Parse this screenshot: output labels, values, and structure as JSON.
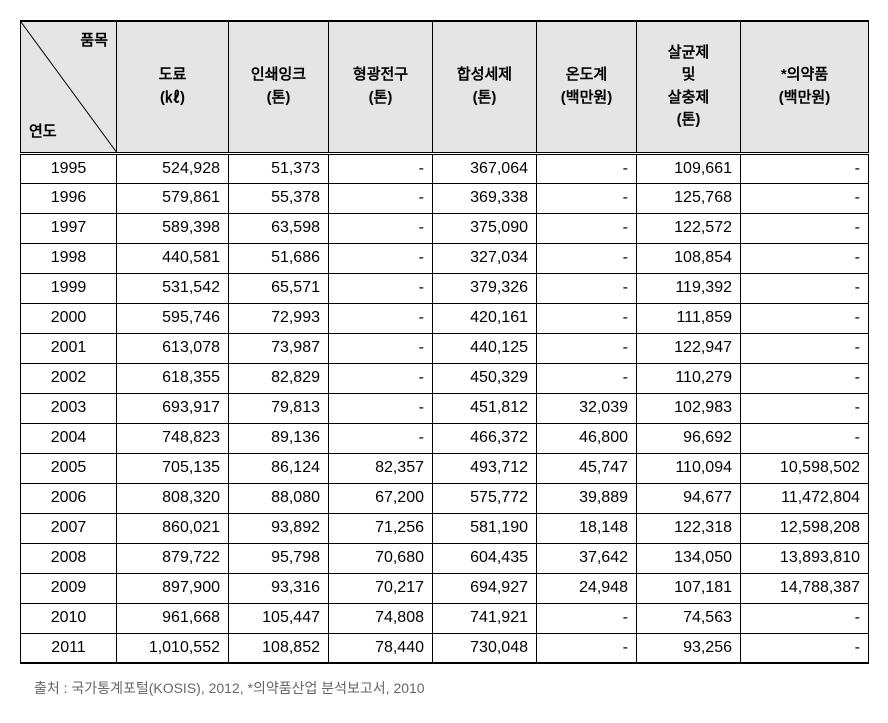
{
  "corner": {
    "top": "품목",
    "bottom": "연도"
  },
  "columns": [
    {
      "label": "도료",
      "unit": "(㎘)"
    },
    {
      "label": "인쇄잉크",
      "unit": "(톤)"
    },
    {
      "label": "형광전구",
      "unit": "(톤)"
    },
    {
      "label": "합성세제",
      "unit": "(톤)"
    },
    {
      "label": "온도계",
      "unit": "(백만원)"
    },
    {
      "label": "살균제\n및\n살충제",
      "unit": "(톤)"
    },
    {
      "label": "*의약품",
      "unit": "(백만원)"
    }
  ],
  "rows": [
    {
      "year": "1995",
      "cells": [
        "524,928",
        "51,373",
        "-",
        "367,064",
        "-",
        "109,661",
        "-"
      ]
    },
    {
      "year": "1996",
      "cells": [
        "579,861",
        "55,378",
        "-",
        "369,338",
        "-",
        "125,768",
        "-"
      ]
    },
    {
      "year": "1997",
      "cells": [
        "589,398",
        "63,598",
        "-",
        "375,090",
        "-",
        "122,572",
        "-"
      ]
    },
    {
      "year": "1998",
      "cells": [
        "440,581",
        "51,686",
        "-",
        "327,034",
        "-",
        "108,854",
        "-"
      ]
    },
    {
      "year": "1999",
      "cells": [
        "531,542",
        "65,571",
        "-",
        "379,326",
        "-",
        "119,392",
        "-"
      ]
    },
    {
      "year": "2000",
      "cells": [
        "595,746",
        "72,993",
        "-",
        "420,161",
        "-",
        "111,859",
        "-"
      ]
    },
    {
      "year": "2001",
      "cells": [
        "613,078",
        "73,987",
        "-",
        "440,125",
        "-",
        "122,947",
        "-"
      ]
    },
    {
      "year": "2002",
      "cells": [
        "618,355",
        "82,829",
        "-",
        "450,329",
        "-",
        "110,279",
        "-"
      ]
    },
    {
      "year": "2003",
      "cells": [
        "693,917",
        "79,813",
        "-",
        "451,812",
        "32,039",
        "102,983",
        "-"
      ]
    },
    {
      "year": "2004",
      "cells": [
        "748,823",
        "89,136",
        "-",
        "466,372",
        "46,800",
        "96,692",
        "-"
      ]
    },
    {
      "year": "2005",
      "cells": [
        "705,135",
        "86,124",
        "82,357",
        "493,712",
        "45,747",
        "110,094",
        "10,598,502"
      ]
    },
    {
      "year": "2006",
      "cells": [
        "808,320",
        "88,080",
        "67,200",
        "575,772",
        "39,889",
        "94,677",
        "11,472,804"
      ]
    },
    {
      "year": "2007",
      "cells": [
        "860,021",
        "93,892",
        "71,256",
        "581,190",
        "18,148",
        "122,318",
        "12,598,208"
      ]
    },
    {
      "year": "2008",
      "cells": [
        "879,722",
        "95,798",
        "70,680",
        "604,435",
        "37,642",
        "134,050",
        "13,893,810"
      ]
    },
    {
      "year": "2009",
      "cells": [
        "897,900",
        "93,316",
        "70,217",
        "694,927",
        "24,948",
        "107,181",
        "14,788,387"
      ]
    },
    {
      "year": "2010",
      "cells": [
        "961,668",
        "105,447",
        "74,808",
        "741,921",
        "-",
        "74,563",
        "-"
      ]
    },
    {
      "year": "2011",
      "cells": [
        "1,010,552",
        "108,852",
        "78,440",
        "730,048",
        "-",
        "93,256",
        "-"
      ]
    }
  ],
  "source": "출처 : 국가통계포털(KOSIS), 2012, *의약품산업 분석보고서, 2010",
  "style": {
    "header_bg": "#e5e5e5",
    "border_color": "#000000",
    "text_color": "#000000",
    "source_color": "#666666",
    "body_fontsize": 16,
    "header_fontsize": 15,
    "source_fontsize": 14
  }
}
